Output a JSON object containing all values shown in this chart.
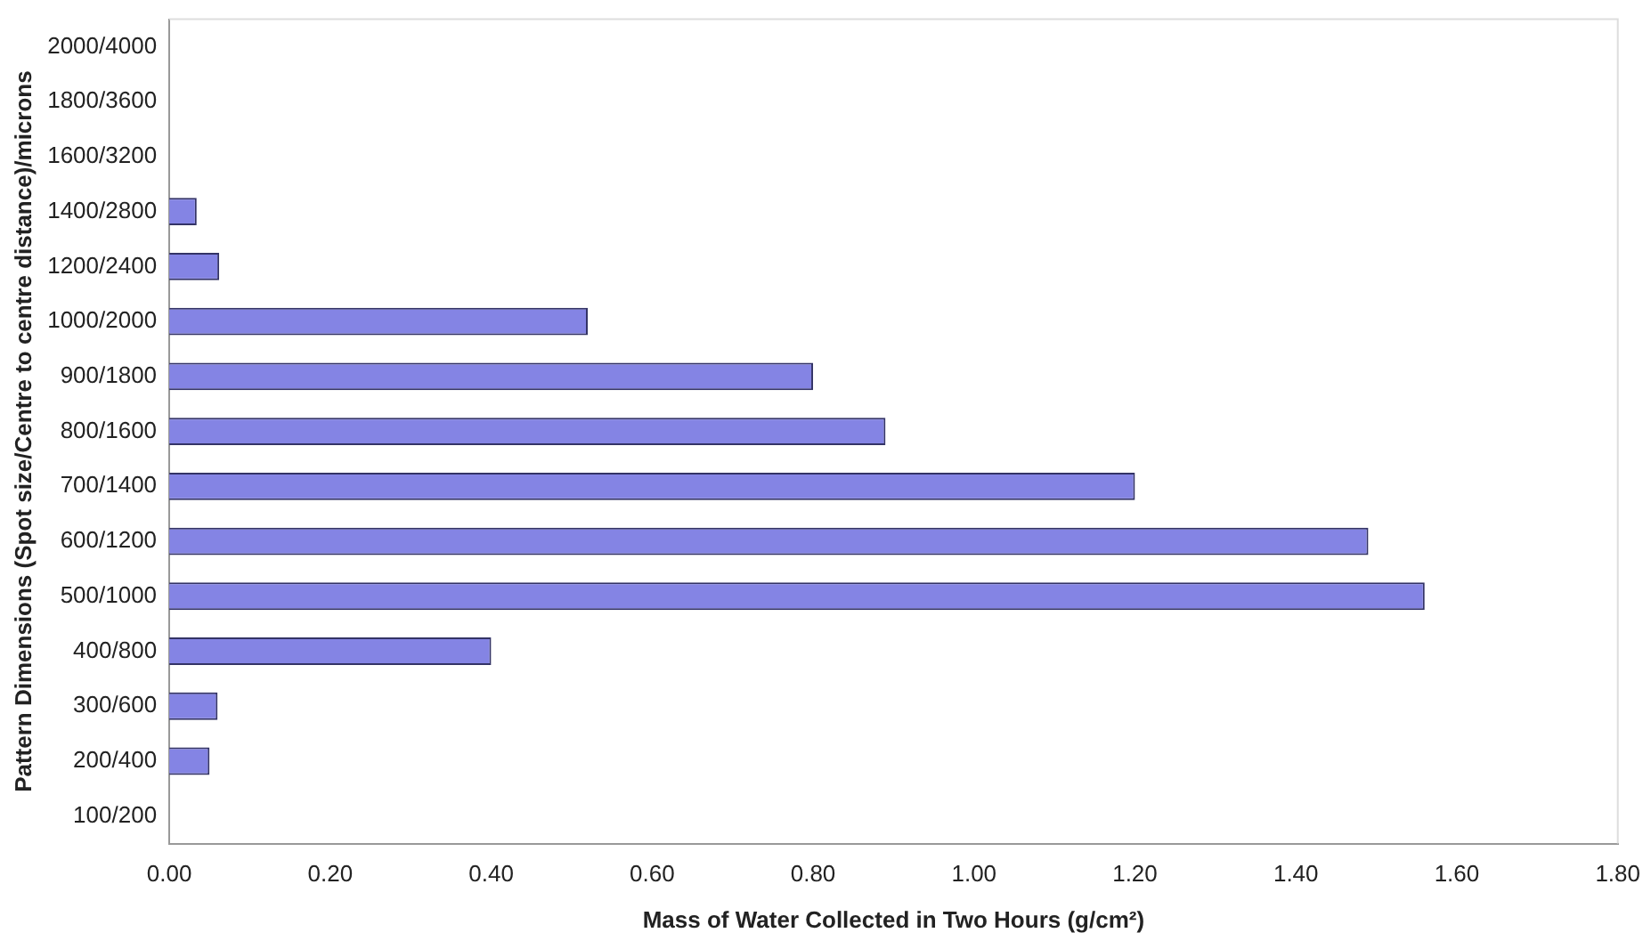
{
  "chart_data": {
    "type": "bar",
    "orientation": "horizontal",
    "xlabel": "Mass of Water Collected in Two Hours (g/cm²)",
    "ylabel": "Pattern Dimensions (Spot size/Centre to centre distance)/microns",
    "categories": [
      "2000/4000",
      "1800/3600",
      "1600/3200",
      "1400/2800",
      "1200/2400",
      "1000/2000",
      "900/1800",
      "800/1600",
      "700/1400",
      "600/1200",
      "500/1000",
      "400/800",
      "300/600",
      "200/400",
      "100/200"
    ],
    "values": [
      0,
      0,
      0,
      0.034,
      0.062,
      0.52,
      0.8,
      0.89,
      1.2,
      1.49,
      1.56,
      0.4,
      0.06,
      0.05,
      0
    ],
    "color": "#8484e4",
    "xlim": [
      0,
      1.8
    ],
    "xticks": [
      {
        "value": 0,
        "label": "0.00"
      },
      {
        "value": 0.2,
        "label": "0.20"
      },
      {
        "value": 0.4,
        "label": "0.40"
      },
      {
        "value": 0.6,
        "label": "0.60"
      },
      {
        "value": 0.8,
        "label": "0.80"
      },
      {
        "value": 1,
        "label": "1.00"
      },
      {
        "value": 1.2,
        "label": "1.20"
      },
      {
        "value": 1.4,
        "label": "1.40"
      },
      {
        "value": 1.6,
        "label": "1.60"
      },
      {
        "value": 1.8,
        "label": "1.80"
      }
    ],
    "grid": false,
    "legend": false
  }
}
